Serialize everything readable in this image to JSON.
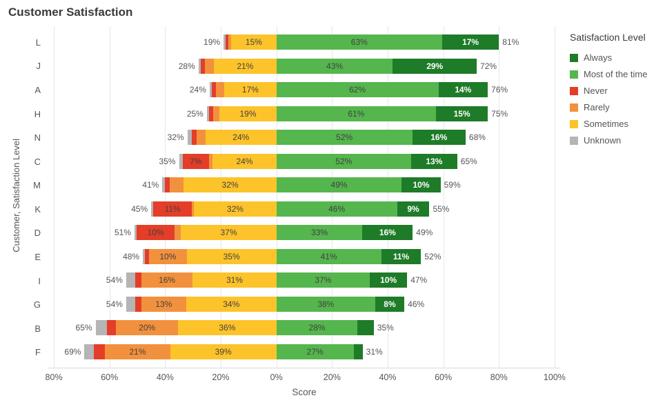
{
  "title": "Customer Satisfaction",
  "colors": {
    "always": "#1e7b28",
    "most": "#55b64e",
    "never": "#e43d28",
    "rarely": "#f2913d",
    "sometimes": "#fdc32a",
    "unknown": "#b5b5b5"
  },
  "legend": {
    "title": "Satisfaction Level",
    "items": [
      {
        "key": "always",
        "label": "Always"
      },
      {
        "key": "most",
        "label": "Most of the time"
      },
      {
        "key": "never",
        "label": "Never"
      },
      {
        "key": "rarely",
        "label": "Rarely"
      },
      {
        "key": "sometimes",
        "label": "Sometimes"
      },
      {
        "key": "unknown",
        "label": "Unknown"
      }
    ]
  },
  "chart_data": {
    "type": "diverging-stacked-bar",
    "title": "Customer Satisfaction",
    "xlabel": "Score",
    "ylabel": "Customer, Satisfaction Level",
    "grid": true,
    "legend_position": "right",
    "left_stack_order": [
      "unknown",
      "never",
      "rarely",
      "sometimes"
    ],
    "right_stack_order": [
      "most",
      "always"
    ],
    "axis": {
      "min": -82,
      "max": 102,
      "ticks": [
        {
          "v": -80,
          "label": "80%"
        },
        {
          "v": -60,
          "label": "60%"
        },
        {
          "v": -40,
          "label": "40%"
        },
        {
          "v": -20,
          "label": "20%"
        },
        {
          "v": 0,
          "label": "0%"
        },
        {
          "v": 20,
          "label": "20%"
        },
        {
          "v": 40,
          "label": "40%"
        },
        {
          "v": 60,
          "label": "60%"
        },
        {
          "v": 80,
          "label": "80%"
        },
        {
          "v": 100,
          "label": "100%"
        }
      ]
    },
    "categories": [
      "L",
      "J",
      "A",
      "H",
      "N",
      "C",
      "M",
      "K",
      "D",
      "E",
      "I",
      "G",
      "B",
      "F"
    ],
    "rows": [
      {
        "category": "L",
        "left_label": "19%",
        "right_label": "81%",
        "values": {
          "unknown": 1,
          "never": 1.5,
          "rarely": 1.5,
          "sometimes": 15,
          "most": 63,
          "always": 17
        },
        "labels": {
          "unknown": "",
          "never": "",
          "rarely": "",
          "sometimes": "15%",
          "most": "63%",
          "always": "17%"
        }
      },
      {
        "category": "J",
        "left_label": "28%",
        "right_label": "72%",
        "values": {
          "unknown": 1,
          "never": 2,
          "rarely": 4,
          "sometimes": 21,
          "most": 43,
          "always": 29
        },
        "labels": {
          "unknown": "",
          "never": "",
          "rarely": "",
          "sometimes": "21%",
          "most": "43%",
          "always": "29%"
        }
      },
      {
        "category": "A",
        "left_label": "24%",
        "right_label": "76%",
        "values": {
          "unknown": 1,
          "never": 2,
          "rarely": 4,
          "sometimes": 17,
          "most": 62,
          "always": 14
        },
        "labels": {
          "unknown": "",
          "never": "",
          "rarely": "",
          "sometimes": "17%",
          "most": "62%",
          "always": "14%"
        }
      },
      {
        "category": "H",
        "left_label": "25%",
        "right_label": "75%",
        "values": {
          "unknown": 1,
          "never": 2,
          "rarely": 3,
          "sometimes": 19,
          "most": 61,
          "always": 15
        },
        "labels": {
          "unknown": "",
          "never": "",
          "rarely": "",
          "sometimes": "19%",
          "most": "61%",
          "always": "15%"
        }
      },
      {
        "category": "N",
        "left_label": "32%",
        "right_label": "68%",
        "values": {
          "unknown": 2,
          "never": 2,
          "rarely": 4,
          "sometimes": 24,
          "most": 52,
          "always": 16
        },
        "labels": {
          "unknown": "",
          "never": "",
          "rarely": "",
          "sometimes": "24%",
          "most": "52%",
          "always": "16%"
        }
      },
      {
        "category": "C",
        "left_label": "35%",
        "right_label": "65%",
        "values": {
          "unknown": 2,
          "never": 7,
          "rarely": 2,
          "sometimes": 24,
          "most": 52,
          "always": 13
        },
        "labels": {
          "unknown": "",
          "never": "7%",
          "rarely": "",
          "sometimes": "24%",
          "most": "52%",
          "always": "13%"
        }
      },
      {
        "category": "M",
        "left_label": "41%",
        "right_label": "59%",
        "values": {
          "unknown": 1,
          "never": 2,
          "rarely": 6,
          "sometimes": 32,
          "most": 49,
          "always": 10
        },
        "labels": {
          "unknown": "",
          "never": "",
          "rarely": "",
          "sometimes": "32%",
          "most": "49%",
          "always": "10%"
        }
      },
      {
        "category": "K",
        "left_label": "45%",
        "right_label": "55%",
        "values": {
          "unknown": 1,
          "never": 11,
          "rarely": 1,
          "sometimes": 32,
          "most": 46,
          "always": 9
        },
        "labels": {
          "unknown": "",
          "never": "11%",
          "rarely": "",
          "sometimes": "32%",
          "most": "46%",
          "always": "9%"
        }
      },
      {
        "category": "D",
        "left_label": "51%",
        "right_label": "49%",
        "values": {
          "unknown": 1,
          "never": 10,
          "rarely": 3,
          "sometimes": 37,
          "most": 33,
          "always": 16
        },
        "labels": {
          "unknown": "",
          "never": "10%",
          "rarely": "",
          "sometimes": "37%",
          "most": "33%",
          "always": "16%"
        }
      },
      {
        "category": "E",
        "left_label": "48%",
        "right_label": "52%",
        "values": {
          "unknown": 1,
          "never": 2,
          "rarely": 10,
          "sometimes": 35,
          "most": 41,
          "always": 11
        },
        "labels": {
          "unknown": "",
          "never": "",
          "rarely": "10%",
          "sometimes": "35%",
          "most": "41%",
          "always": "11%"
        }
      },
      {
        "category": "I",
        "left_label": "54%",
        "right_label": "47%",
        "values": {
          "unknown": 4,
          "never": 3,
          "rarely": 16,
          "sometimes": 31,
          "most": 37,
          "always": 10
        },
        "labels": {
          "unknown": "",
          "never": "",
          "rarely": "16%",
          "sometimes": "31%",
          "most": "37%",
          "always": "10%"
        }
      },
      {
        "category": "G",
        "left_label": "54%",
        "right_label": "46%",
        "values": {
          "unknown": 4,
          "never": 3,
          "rarely": 13,
          "sometimes": 34,
          "most": 38,
          "always": 8
        },
        "labels": {
          "unknown": "",
          "never": "",
          "rarely": "13%",
          "sometimes": "34%",
          "most": "38%",
          "always": "8%"
        }
      },
      {
        "category": "B",
        "left_label": "65%",
        "right_label": "35%",
        "values": {
          "unknown": 5,
          "never": 4,
          "rarely": 20,
          "sometimes": 36,
          "most": 28,
          "always": 7
        },
        "labels": {
          "unknown": "",
          "never": "",
          "rarely": "20%",
          "sometimes": "36%",
          "most": "28%",
          "always": ""
        }
      },
      {
        "category": "F",
        "left_label": "69%",
        "right_label": "31%",
        "values": {
          "unknown": 4,
          "never": 5,
          "rarely": 21,
          "sometimes": 39,
          "most": 27,
          "always": 4
        },
        "labels": {
          "unknown": "",
          "never": "",
          "rarely": "21%",
          "sometimes": "39%",
          "most": "27%",
          "always": ""
        }
      }
    ]
  }
}
